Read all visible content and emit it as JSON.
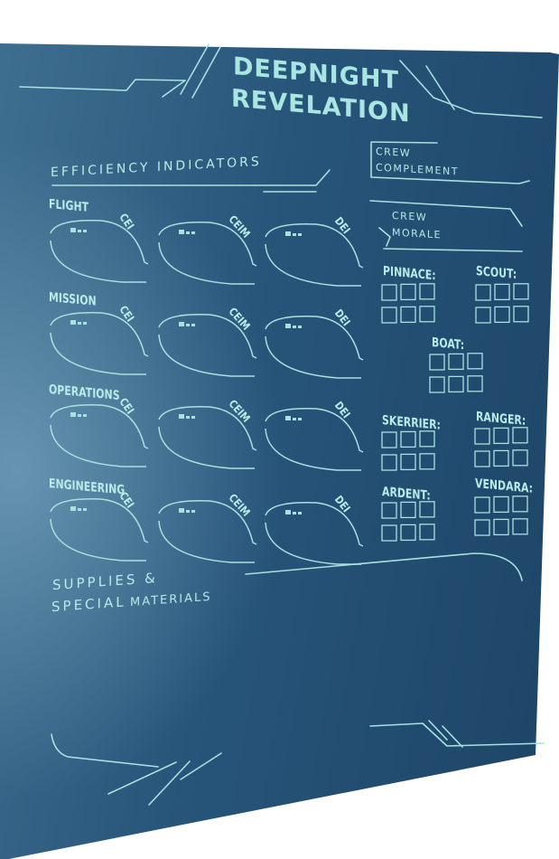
{
  "title_line1": "DEEPNIGHT",
  "title_line2": "REVELATION",
  "efficiency_heading": "EFFICIENCY INDICATORS",
  "departments": [
    "FLIGHT",
    "MISSION",
    "OPERATIONS",
    "ENGINEERING"
  ],
  "indicators": [
    "CEI",
    "CEIM",
    "DEI"
  ],
  "crew_complement": {
    "line1": "CREW",
    "line2": "COMPLEMENT"
  },
  "crew_morale": {
    "line1": "CREW",
    "line2": "MORALE"
  },
  "craft": [
    "PINNACE:",
    "SCOUT:",
    "BOAT:",
    "SKERRIER:",
    "RANGER:",
    "ARDENT:",
    "VENDARA:"
  ],
  "supplies": {
    "line1": "SUPPLIES &",
    "line2a": "SPECIAL",
    "line2b": "MATERIALS"
  },
  "colors": {
    "ink": "#a9e1df",
    "panel": "#27557a",
    "panel_light": "#5f90b0"
  }
}
